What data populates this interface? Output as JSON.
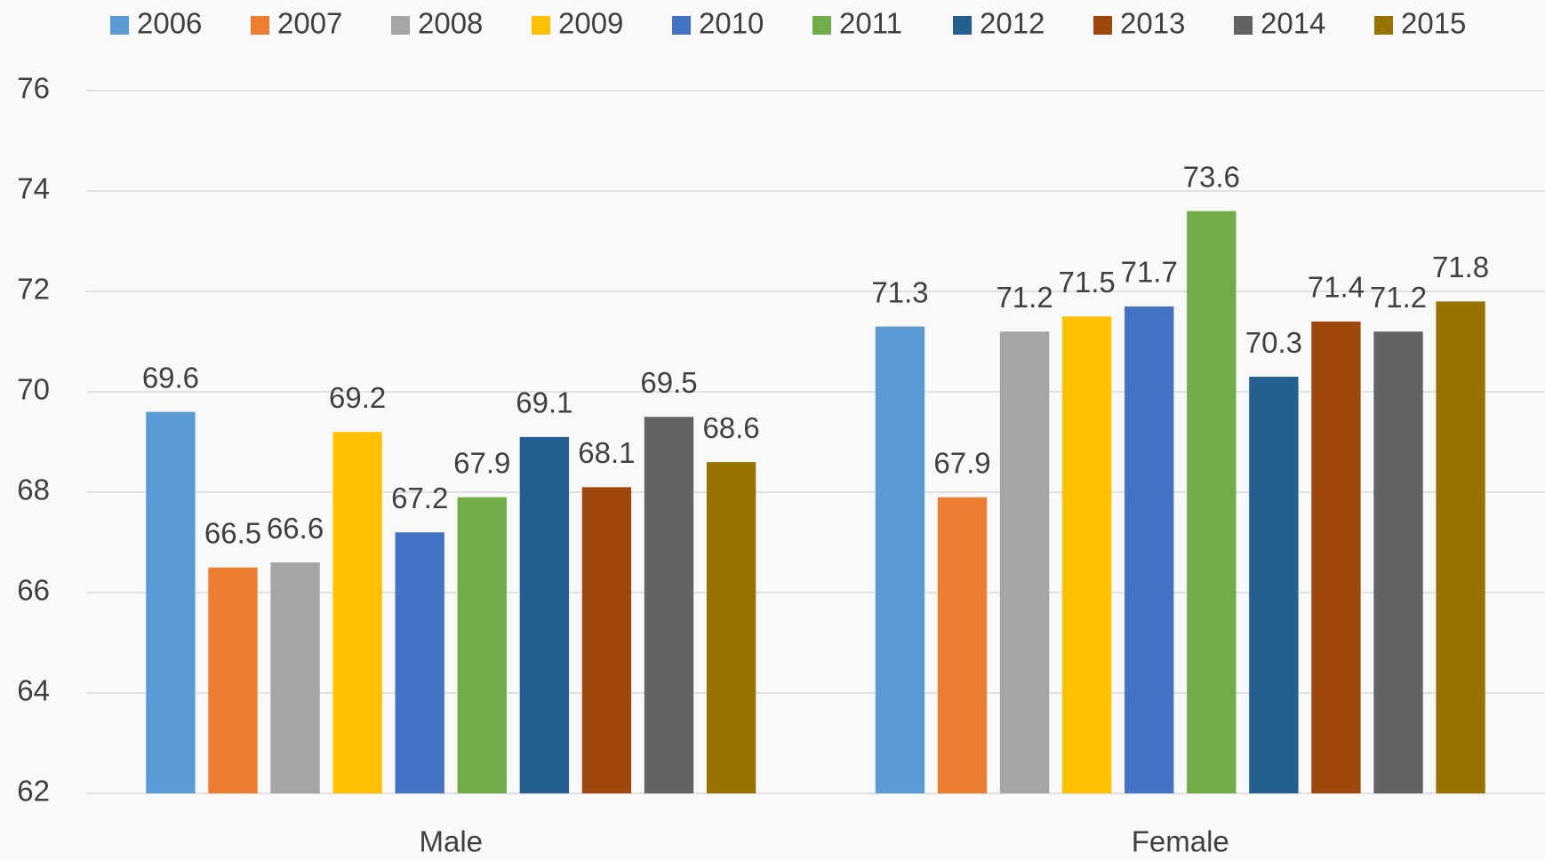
{
  "chart_data": {
    "type": "bar",
    "categories": [
      "Male",
      "Female"
    ],
    "series": [
      {
        "name": "2006",
        "color": "#5b9bd5",
        "values": [
          69.6,
          71.3
        ]
      },
      {
        "name": "2007",
        "color": "#ed7d31",
        "values": [
          66.5,
          67.9
        ]
      },
      {
        "name": "2008",
        "color": "#a5a5a5",
        "values": [
          66.6,
          71.2
        ]
      },
      {
        "name": "2009",
        "color": "#ffc000",
        "values": [
          69.2,
          71.5
        ]
      },
      {
        "name": "2010",
        "color": "#4472c4",
        "values": [
          67.2,
          71.7
        ]
      },
      {
        "name": "2011",
        "color": "#70ad47",
        "values": [
          67.9,
          73.6
        ]
      },
      {
        "name": "2012",
        "color": "#255e91",
        "values": [
          69.1,
          70.3
        ]
      },
      {
        "name": "2013",
        "color": "#9e480e",
        "values": [
          68.1,
          71.4
        ]
      },
      {
        "name": "2014",
        "color": "#636363",
        "values": [
          69.5,
          71.2
        ]
      },
      {
        "name": "2015",
        "color": "#997300",
        "values": [
          68.6,
          71.8
        ]
      }
    ],
    "ylim": [
      62,
      76
    ],
    "yticks": [
      62,
      64,
      66,
      68,
      70,
      72,
      74,
      76
    ],
    "grid": true,
    "legend": "top"
  }
}
